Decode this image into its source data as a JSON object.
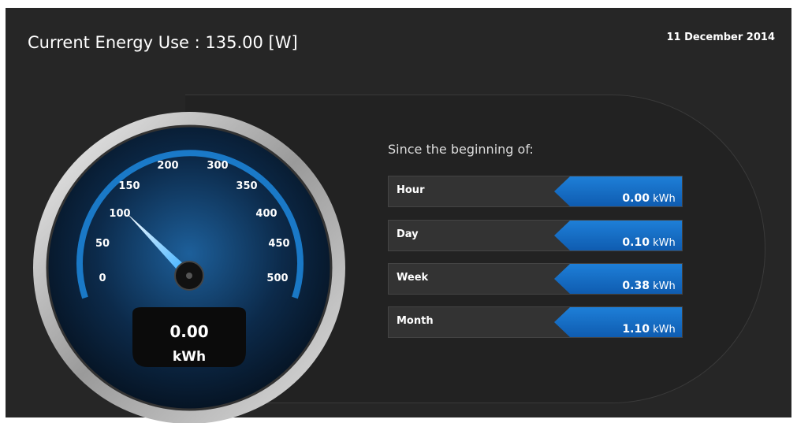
{
  "header": {
    "title": "Current Energy Use : 135.00 [W]",
    "date": "11 December 2014"
  },
  "gauge": {
    "ticks": [
      "0",
      "50",
      "100",
      "150",
      "200",
      "300",
      "350",
      "400",
      "450",
      "500"
    ],
    "reading": "0.00",
    "unit": "kWh"
  },
  "panel": {
    "heading": "Since the beginning of:",
    "rows": [
      {
        "label": "Hour",
        "value": "0.00",
        "unit": "kWh"
      },
      {
        "label": "Day",
        "value": "0.10",
        "unit": "kWh"
      },
      {
        "label": "Week",
        "value": "0.38",
        "unit": "kWh"
      },
      {
        "label": "Month",
        "value": "1.10",
        "unit": "kWh"
      }
    ]
  }
}
